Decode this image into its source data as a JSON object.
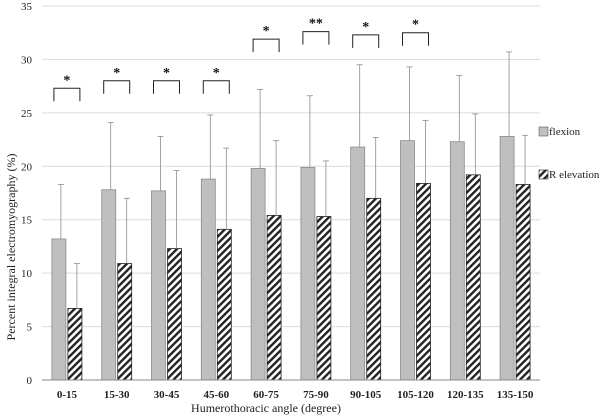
{
  "chart_data": {
    "type": "bar",
    "title": "",
    "xlabel": "Humerothoracic angle (degree)",
    "ylabel": "Percent integral electromyography (%)",
    "ylim": [
      0,
      35
    ],
    "yticks": [
      0,
      5,
      10,
      15,
      20,
      25,
      30,
      35
    ],
    "grid": true,
    "legend_position": "right",
    "categories": [
      "0-15",
      "15-30",
      "30-45",
      "45-60",
      "60-75",
      "75-90",
      "90-105",
      "105-120",
      "120-135",
      "135-150"
    ],
    "series": [
      {
        "name": "flexion",
        "values": [
          13.2,
          17.8,
          17.7,
          18.8,
          19.8,
          19.9,
          21.8,
          22.4,
          22.3,
          22.8
        ],
        "error_upper": [
          18.3,
          24.1,
          22.8,
          24.8,
          27.2,
          26.6,
          29.5,
          29.3,
          28.5,
          30.7
        ],
        "color": "#bfbfbf"
      },
      {
        "name": "R elevation",
        "values": [
          6.7,
          10.9,
          12.3,
          14.1,
          15.4,
          15.3,
          17.0,
          18.4,
          19.2,
          18.3
        ],
        "error_upper": [
          10.9,
          17.0,
          19.6,
          21.7,
          22.4,
          20.5,
          22.7,
          24.3,
          24.9,
          22.9
        ],
        "color": "#ffffff"
      }
    ],
    "significance": [
      {
        "category_index": 0,
        "label": "*",
        "level": 27.3
      },
      {
        "category_index": 1,
        "label": "*",
        "level": 28.0
      },
      {
        "category_index": 2,
        "label": "*",
        "level": 28.0
      },
      {
        "category_index": 3,
        "label": "*",
        "level": 28.0
      },
      {
        "category_index": 4,
        "label": "*",
        "level": 31.9
      },
      {
        "category_index": 5,
        "label": "**",
        "level": 32.6
      },
      {
        "category_index": 6,
        "label": "*",
        "level": 32.3
      },
      {
        "category_index": 7,
        "label": "*",
        "level": 32.5
      }
    ]
  }
}
